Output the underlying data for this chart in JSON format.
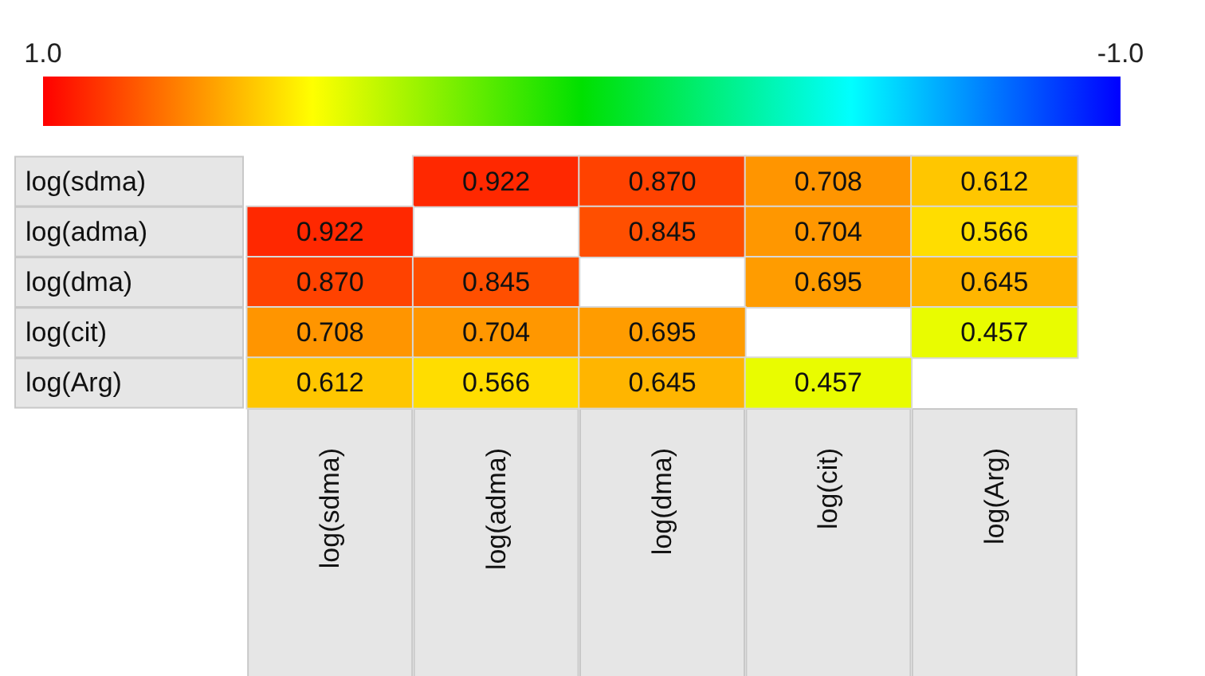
{
  "chart_data": {
    "type": "heatmap",
    "categories": [
      "log(sdma)",
      "log(adma)",
      "log(dma)",
      "log(cit)",
      "log(Arg)"
    ],
    "y_categories": [
      "log(sdma)",
      "log(adma)",
      "log(dma)",
      "log(cit)",
      "log(Arg)"
    ],
    "cells": [
      [
        null,
        0.922,
        0.87,
        0.708,
        0.612
      ],
      [
        0.922,
        null,
        0.845,
        0.704,
        0.566
      ],
      [
        0.87,
        0.845,
        null,
        0.695,
        0.645
      ],
      [
        0.708,
        0.704,
        0.695,
        null,
        0.457
      ],
      [
        0.612,
        0.566,
        0.645,
        0.457,
        null
      ]
    ],
    "cell_labels": [
      [
        null,
        "0.922",
        "0.870",
        "0.708",
        "0.612"
      ],
      [
        "0.922",
        null,
        "0.845",
        "0.704",
        "0.566"
      ],
      [
        "0.870",
        "0.845",
        null,
        "0.695",
        "0.645"
      ],
      [
        "0.708",
        "0.704",
        "0.695",
        null,
        "0.457"
      ],
      [
        "0.612",
        "0.566",
        "0.645",
        "0.457",
        null
      ]
    ],
    "clim": [
      1.0,
      -1.0
    ],
    "cticks": [
      {
        "value": 1.0,
        "label": "1.0"
      },
      {
        "value": -1.0,
        "label": "-1.0"
      }
    ]
  }
}
